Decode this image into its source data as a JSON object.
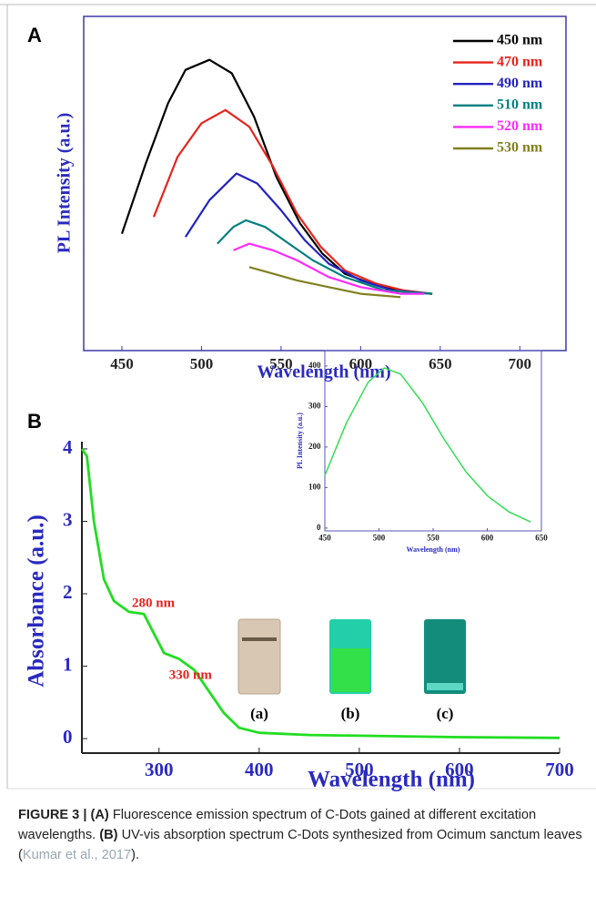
{
  "figure": {
    "panel_labels": [
      "A",
      "B"
    ],
    "vial_labels": [
      "(a)",
      "(b)",
      "(c)"
    ],
    "caption": [
      {
        "text": "FIGURE 3 | (A)",
        "style": "bold"
      },
      {
        "text": " Fluorescence emission spectrum of C-Dots gained at different excitation wavelengths. ",
        "style": "normal"
      },
      {
        "text": "(B)",
        "style": "bold"
      },
      {
        "text": " UV-vis absorption spectrum C-Dots synthesized from Ocimum sanctum leaves (",
        "style": "normal"
      },
      {
        "text": "Kumar et al., 2017",
        "style": "link"
      },
      {
        "text": ").",
        "style": "normal"
      }
    ]
  },
  "chart_data": [
    {
      "type": "line",
      "x_label": "Wavelength (nm)",
      "y_label": "PL Intensity (a.u.)",
      "xlim": [
        426,
        729
      ],
      "ylim": [
        0,
        100
      ],
      "xticks": [
        450,
        500,
        550,
        600,
        650,
        700
      ],
      "legend": "upper right",
      "series": [
        {
          "name": "450 nm",
          "color": "#000000",
          "x": [
            450,
            465,
            479,
            490,
            505,
            519,
            533,
            547,
            562,
            576,
            590,
            607,
            624,
            644
          ],
          "values": [
            35,
            56,
            74,
            84,
            87,
            83,
            70,
            52,
            38,
            29,
            23,
            20,
            18,
            17
          ]
        },
        {
          "name": "470 nm",
          "color": "#e8231b",
          "x": [
            470,
            485,
            500,
            515,
            530,
            545,
            560,
            575,
            590,
            610,
            627,
            645
          ],
          "values": [
            40,
            58,
            68,
            72,
            67,
            55,
            41,
            31,
            24,
            20,
            18,
            17
          ]
        },
        {
          "name": "490 nm",
          "color": "#2222c0",
          "x": [
            490,
            505,
            522,
            535,
            550,
            565,
            580,
            600,
            620,
            645
          ],
          "values": [
            34,
            45,
            53,
            50,
            42,
            33,
            26,
            21,
            18,
            17
          ]
        },
        {
          "name": "510 nm",
          "color": "#008080",
          "x": [
            510,
            520,
            528,
            540,
            555,
            570,
            590,
            615,
            645
          ],
          "values": [
            32,
            37,
            39,
            37,
            32,
            27,
            22,
            18,
            17
          ]
        },
        {
          "name": "520 nm",
          "color": "#ff2aff",
          "x": [
            520,
            530,
            545,
            560,
            580,
            600,
            625,
            640
          ],
          "values": [
            30,
            32,
            30,
            27,
            22,
            19,
            17,
            17
          ]
        },
        {
          "name": "530 nm",
          "color": "#808020",
          "x": [
            530,
            545,
            560,
            580,
            600,
            625
          ],
          "values": [
            25,
            23,
            21,
            19,
            17,
            16
          ]
        }
      ]
    },
    {
      "type": "line",
      "x_label": "Wavelength (nm)",
      "y_label": "Absorbance (a.u.)",
      "xlim": [
        223,
        700
      ],
      "ylim": [
        -0.2,
        4.1
      ],
      "xticks": [
        300,
        400,
        500,
        600,
        700
      ],
      "yticks": [
        0,
        1,
        2,
        3,
        4
      ],
      "series": [
        {
          "color": "#22dd22",
          "x": [
            223,
            228,
            235,
            245,
            255,
            270,
            285,
            295,
            305,
            320,
            335,
            350,
            365,
            380,
            400,
            450,
            500,
            600,
            700
          ],
          "values": [
            4,
            3.9,
            3.0,
            2.2,
            1.9,
            1.75,
            1.72,
            1.45,
            1.18,
            1.1,
            0.95,
            0.65,
            0.35,
            0.15,
            0.08,
            0.05,
            0.04,
            0.02,
            0.01
          ]
        }
      ],
      "annotations": [
        {
          "text": "280 nm",
          "x": 273,
          "y": 1.86
        },
        {
          "text": "330 nm",
          "x": 310,
          "y": 0.87
        }
      ]
    },
    {
      "type": "line",
      "x_label": "Wavelength (nm)",
      "y_label": "PL Intensity (a.u.)",
      "xlim": [
        450,
        650
      ],
      "ylim": [
        -7,
        438
      ],
      "xticks": [
        450,
        500,
        550,
        600,
        650
      ],
      "yticks": [
        0,
        100,
        200,
        300,
        400
      ],
      "series": [
        {
          "color": "#33dd55",
          "x": [
            450,
            470,
            490,
            505,
            520,
            540,
            560,
            580,
            600,
            620,
            640
          ],
          "values": [
            130,
            260,
            360,
            395,
            380,
            310,
            220,
            140,
            80,
            40,
            15
          ]
        }
      ]
    }
  ]
}
